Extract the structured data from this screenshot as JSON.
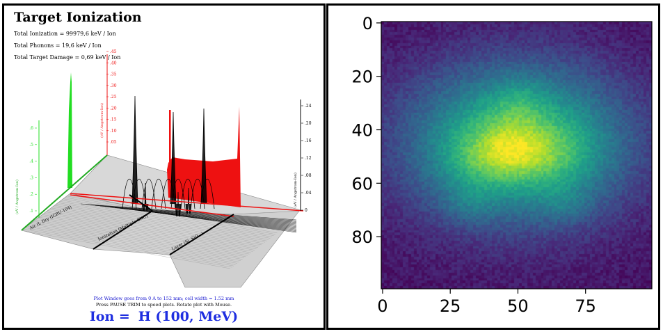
{
  "left": {
    "title": "Target Ionization",
    "stats": [
      "Total Ionization = 99979,6 keV / Ion",
      "Total Phonons = 19,6 keV / Ion",
      "Total Target Damage = 0,69 keV / Ion"
    ],
    "green_axis_ticks": [
      ".6",
      ".5",
      ".4",
      ".3",
      ".2",
      ".1"
    ],
    "green_axis_label": "(eV / Angstrom-Ion)",
    "red_axis_ticks": [
      ".45",
      ".40",
      ".35",
      ".30",
      ".25",
      ".20",
      ".15",
      ".10",
      ".05"
    ],
    "red_axis_label": "(eV / Angstrom-Ion)",
    "black_axis_ticks": [
      ".24",
      ".20",
      ".16",
      ".12",
      ".08",
      ".04",
      "0"
    ],
    "black_axis_label": "(eV / Angstrom-Ion)",
    "layer_labels": [
      "Air (I, Dry  (ICRU-104)",
      "Ionization (Multiple CNC)",
      "Layer (Si, SiO...)"
    ],
    "plot_window_text": "Plot Window goes from 0 A to 152 mm;  cell width = 1.52 mm",
    "pause_text": "Press PAUSE TRIM to speed plots.   Rotate plot with Mouse.",
    "ion_label": "Ion =",
    "ion_value": "H (100, MeV)",
    "colors": {
      "green": "#22dd22",
      "red": "#ee1111",
      "black": "#000000",
      "blue": "#1e2ee0"
    }
  },
  "chart_data": {
    "type": "heatmap",
    "colormap": "viridis",
    "x_ticks": [
      0,
      25,
      50,
      75
    ],
    "y_ticks": [
      0,
      20,
      40,
      60,
      80
    ],
    "xlim": [
      0,
      99
    ],
    "ylim": [
      99,
      0
    ],
    "grid_size": [
      100,
      100
    ],
    "title": "",
    "xlabel": "",
    "ylabel": "",
    "blobs": [
      {
        "x": 50,
        "y": 45,
        "sx": 28,
        "sy": 20,
        "amp": 0.7
      },
      {
        "x": 48,
        "y": 48,
        "sx": 9,
        "sy": 7,
        "amp": 0.22
      },
      {
        "x": 33,
        "y": 52,
        "sx": 9,
        "sy": 8,
        "amp": 0.1
      },
      {
        "x": 66,
        "y": 50,
        "sx": 10,
        "sy": 8,
        "amp": 0.1
      },
      {
        "x": 50,
        "y": 30,
        "sx": 7,
        "sy": 6,
        "amp": 0.1
      },
      {
        "x": 32,
        "y": 68,
        "sx": 7,
        "sy": 5,
        "amp": 0.1
      },
      {
        "x": 68,
        "y": 68,
        "sx": 7,
        "sy": 5,
        "amp": 0.1
      }
    ],
    "background": 0.05,
    "noise": 0.1
  }
}
